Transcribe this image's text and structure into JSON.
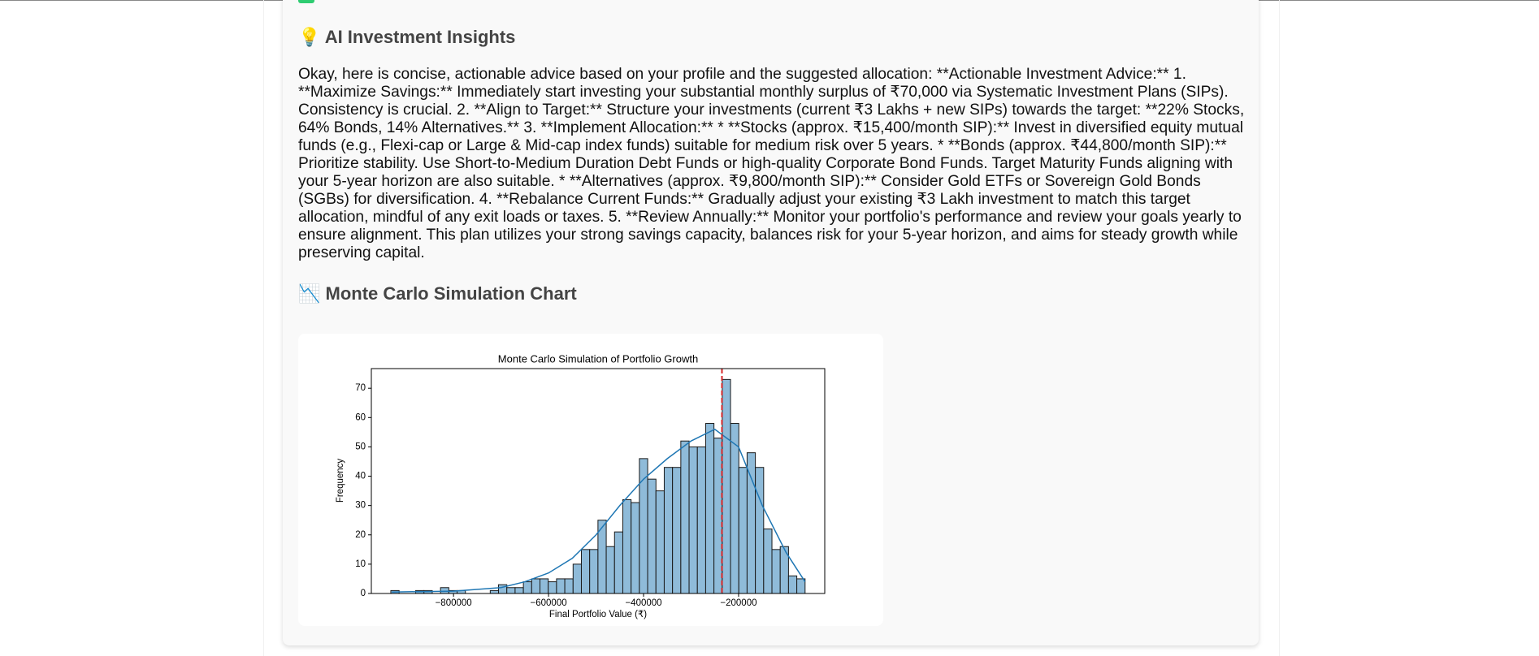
{
  "insights": {
    "title": "💡 AI Investment Insights",
    "body": "Okay, here is concise, actionable advice based on your profile and the suggested allocation: **Actionable Investment Advice:** 1. **Maximize Savings:** Immediately start investing your substantial monthly surplus of ₹70,000 via Systematic Investment Plans (SIPs). Consistency is crucial. 2. **Align to Target:** Structure your investments (current ₹3 Lakhs + new SIPs) towards the target: **22% Stocks, 64% Bonds, 14% Alternatives.** 3. **Implement Allocation:** * **Stocks (approx. ₹15,400/month SIP):** Invest in diversified equity mutual funds (e.g., Flexi-cap or Large & Mid-cap index funds) suitable for medium risk over 5 years. * **Bonds (approx. ₹44,800/month SIP):** Prioritize stability. Use Short-to-Medium Duration Debt Funds or high-quality Corporate Bond Funds. Target Maturity Funds aligning with your 5-year horizon are also suitable. * **Alternatives (approx. ₹9,800/month SIP):** Consider Gold ETFs or Sovereign Gold Bonds (SGBs) for diversification. 4. **Rebalance Current Funds:** Gradually adjust your existing ₹3 Lakh investment to match this target allocation, mindful of any exit loads or taxes. 5. **Review Annually:** Monitor your portfolio's performance and review your goals yearly to ensure alignment. This plan utilizes your strong savings capacity, balances risk for your 5-year horizon, and aims for steady growth while preserving capital."
  },
  "chart_section": {
    "title": "📉 Monte Carlo Simulation Chart"
  },
  "chart_data": {
    "type": "histogram",
    "title": "Monte Carlo Simulation of Portfolio Growth",
    "x_label": "Final Portfolio Value (₹)",
    "y_label": "Frequency",
    "bins": [
      -932000,
      -914560,
      -897120,
      -879680,
      -862240,
      -844800,
      -827360,
      -809920,
      -792480,
      -775040,
      -757600,
      -740160,
      -722720,
      -705280,
      -687840,
      -670400,
      -652960,
      -635520,
      -618080,
      -600640,
      -583200,
      -565760,
      -548320,
      -530880,
      -513440,
      -496000,
      -478560,
      -461120,
      -443680,
      -426240,
      -408800,
      -391360,
      -373920,
      -356480,
      -339040,
      -321600,
      -304160,
      -286720,
      -269280,
      -251840,
      -234400,
      -216960,
      -199520,
      -182080,
      -164640,
      -147200,
      -129760,
      -112320,
      -94880,
      -77440,
      -60000
    ],
    "values": [
      1,
      0,
      0,
      1,
      1,
      0,
      2,
      1,
      1,
      0,
      0,
      0,
      1,
      3,
      2,
      2,
      4,
      5,
      5,
      4,
      5,
      5,
      10,
      15,
      15,
      25,
      16,
      21,
      32,
      31,
      46,
      39,
      35,
      43,
      43,
      52,
      50,
      50,
      58,
      53,
      73,
      58,
      43,
      48,
      43,
      22,
      15,
      16,
      6,
      5
    ],
    "color": "#8fbbd9",
    "edge_color": "#1a1a1a",
    "kde": {
      "color": "#1f77b4",
      "x": [
        -930000,
        -800000,
        -700000,
        -650000,
        -600000,
        -550000,
        -500000,
        -450000,
        -400000,
        -350000,
        -300000,
        -250000,
        -200000,
        -150000,
        -100000,
        -60000
      ],
      "values": [
        0.5,
        0.8,
        2,
        4,
        7,
        12,
        20,
        30,
        39,
        46,
        52,
        56,
        50,
        30,
        14,
        4
      ]
    },
    "vline": {
      "x": -235000,
      "color": "#d62728"
    },
    "xlim": [
      -973000,
      -18600
    ],
    "ylim": [
      0,
      76.7
    ],
    "xticks": [
      {
        "value": -800000,
        "label": "−800000"
      },
      {
        "value": -600000,
        "label": "−600000"
      },
      {
        "value": -400000,
        "label": "−400000"
      },
      {
        "value": -200000,
        "label": "−200000"
      }
    ],
    "yticks": [
      0,
      10,
      20,
      30,
      40,
      50,
      60,
      70
    ]
  }
}
